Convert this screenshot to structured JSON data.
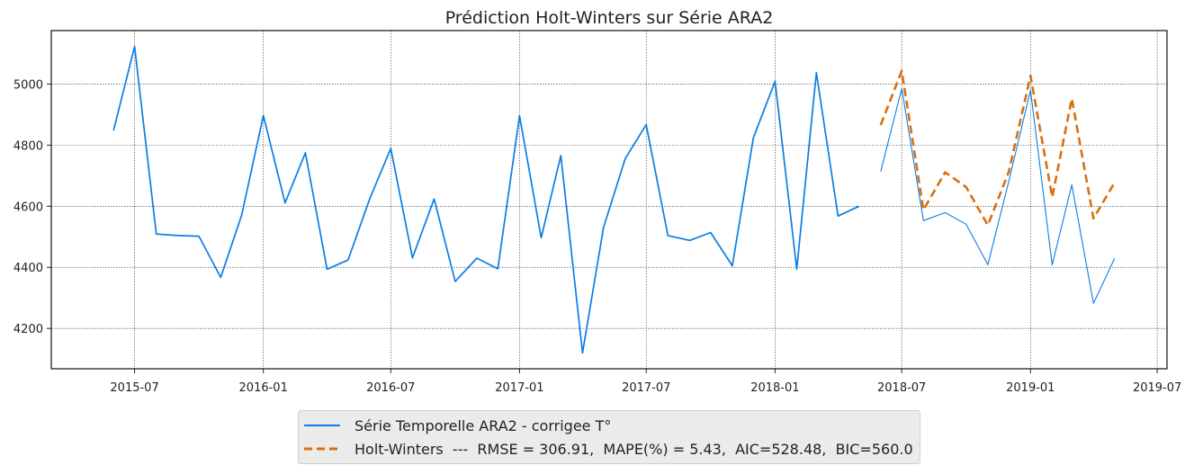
{
  "chart_data": {
    "type": "line",
    "title": "Prédiction Holt-Winters sur Série ARA2",
    "xlabel": "",
    "ylabel": "",
    "x_ticks": [
      "2015-07",
      "2016-01",
      "2016-07",
      "2017-01",
      "2017-07",
      "2018-01",
      "2018-07",
      "2019-01",
      "2019-07"
    ],
    "y_ticks": [
      "4200",
      "4400",
      "4600",
      "4800",
      "5000"
    ],
    "x_range": [
      "2015-03-04",
      "2019-07-15"
    ],
    "y_range": [
      4068,
      5175
    ],
    "grid": true,
    "legend_position": "below",
    "series": [
      {
        "name": "Série Temporelle ARA2 - corrigee T°",
        "color": "#0b7de5",
        "style": "solid",
        "points": [
          [
            "2015-06-01",
            4848
          ],
          [
            "2015-07-01",
            5123
          ],
          [
            "2015-08-01",
            4509
          ],
          [
            "2015-09-01",
            4504
          ],
          [
            "2015-10-01",
            4502
          ],
          [
            "2015-11-01",
            4367
          ],
          [
            "2015-12-01",
            4571
          ],
          [
            "2016-01-01",
            4897
          ],
          [
            "2016-02-01",
            4611
          ],
          [
            "2016-03-01",
            4775
          ],
          [
            "2016-04-01",
            4394
          ],
          [
            "2016-05-01",
            4424
          ],
          [
            "2016-06-01",
            4625
          ],
          [
            "2016-07-01",
            4789
          ],
          [
            "2016-08-01",
            4431
          ],
          [
            "2016-09-01",
            4624
          ],
          [
            "2016-10-01",
            4354
          ],
          [
            "2016-11-01",
            4430
          ],
          [
            "2016-12-01",
            4395
          ],
          [
            "2017-01-01",
            4896
          ],
          [
            "2017-02-01",
            4497
          ],
          [
            "2017-03-01",
            4766
          ],
          [
            "2017-04-01",
            4120
          ],
          [
            "2017-05-01",
            4531
          ],
          [
            "2017-06-01",
            4756
          ],
          [
            "2017-07-01",
            4867
          ],
          [
            "2017-08-01",
            4504
          ],
          [
            "2017-09-01",
            4488
          ],
          [
            "2017-10-01",
            4514
          ],
          [
            "2017-11-01",
            4405
          ],
          [
            "2017-12-01",
            4824
          ],
          [
            "2018-01-01",
            5009
          ],
          [
            "2018-02-01",
            4394
          ],
          [
            "2018-03-01",
            5037
          ],
          [
            "2018-04-01",
            4568
          ],
          [
            "2018-05-01",
            4600
          ]
        ]
      },
      {
        "name": "",
        "color": "#0b7de5",
        "style": "thin",
        "points": [
          [
            "2018-06-01",
            4714
          ],
          [
            "2018-07-01",
            4985
          ],
          [
            "2018-08-01",
            4553
          ],
          [
            "2018-09-01",
            4579
          ],
          [
            "2018-10-01",
            4541
          ],
          [
            "2018-11-01",
            4409
          ],
          [
            "2018-12-01",
            4682
          ],
          [
            "2019-01-01",
            4980
          ],
          [
            "2019-02-01",
            4408
          ],
          [
            "2019-03-01",
            4670
          ],
          [
            "2019-04-01",
            4282
          ],
          [
            "2019-05-01",
            4429
          ]
        ]
      },
      {
        "name": "Holt-Winters  ---  RMSE = 306.91,  MAPE(%) = 5.43,  AIC=528.48,  BIC=560.0",
        "color": "#d8700f",
        "style": "dashed",
        "points": [
          [
            "2018-06-01",
            4866
          ],
          [
            "2018-07-01",
            5043
          ],
          [
            "2018-08-01",
            4588
          ],
          [
            "2018-09-01",
            4711
          ],
          [
            "2018-10-01",
            4663
          ],
          [
            "2018-11-01",
            4538
          ],
          [
            "2018-12-01",
            4713
          ],
          [
            "2019-01-01",
            5027
          ],
          [
            "2019-02-01",
            4630
          ],
          [
            "2019-03-01",
            4952
          ],
          [
            "2019-04-01",
            4560
          ],
          [
            "2019-05-01",
            4677
          ]
        ]
      }
    ]
  }
}
